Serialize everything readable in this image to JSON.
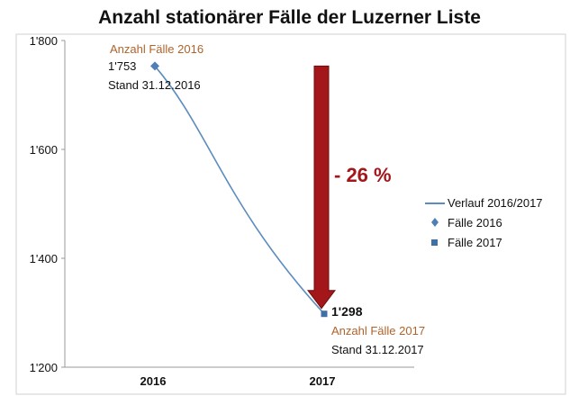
{
  "chart_data": {
    "type": "line",
    "title": "Anzahl stationärer Fälle der Luzerner Liste",
    "categories": [
      "2016",
      "2017"
    ],
    "yticks": [
      "1'800",
      "1'600",
      "1'400",
      "1'200"
    ],
    "ylim": [
      1200,
      1800
    ],
    "grid": false,
    "series": [
      {
        "name": "Verlauf 2016/2017",
        "kind": "line",
        "values": [
          1753,
          1298
        ],
        "color": "#5b8cbf"
      },
      {
        "name": "Fälle 2016",
        "kind": "marker-diamond",
        "values": [
          1753,
          null
        ],
        "color": "#4f7fb5"
      },
      {
        "name": "Fälle 2017",
        "kind": "marker-square",
        "values": [
          null,
          1298
        ],
        "color": "#3f6fa5"
      }
    ],
    "legend_position": "right",
    "annotations": {
      "label_2016": "Anzahl Fälle 2016",
      "value_2016": "1'753",
      "stand_2016": "Stand 31.12.2016",
      "label_2017": "Anzahl Fälle 2017",
      "value_2017": "1'298",
      "stand_2017": "Stand 31.12.2017",
      "change": "- 26 %",
      "arrow_color": "#a3171b"
    }
  }
}
